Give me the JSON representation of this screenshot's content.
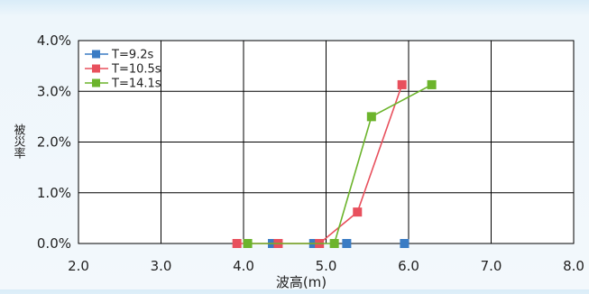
{
  "chart_data": {
    "type": "line",
    "xlabel": "波高(m)",
    "ylabel": "被災率",
    "xlim": [
      2.0,
      8.0
    ],
    "ylim": [
      0.0,
      0.04
    ],
    "x_ticks": [
      "2.0",
      "3.0",
      "4.0",
      "5.0",
      "6.0",
      "7.0",
      "8.0"
    ],
    "y_ticks": [
      "0.0%",
      "1.0%",
      "2.0%",
      "3.0%",
      "4.0%"
    ],
    "grid": true,
    "legend_position": "top-left",
    "series": [
      {
        "name": "T=9.2s",
        "color": "#3a7cc4",
        "connected": false,
        "points": [
          [
            4.35,
            0.0
          ],
          [
            4.85,
            0.0
          ],
          [
            5.25,
            0.0
          ],
          [
            5.95,
            0.0
          ]
        ]
      },
      {
        "name": "T=10.5s",
        "color": "#e8505d",
        "connected": true,
        "points": [
          [
            3.92,
            0.0
          ],
          [
            4.42,
            0.0
          ],
          [
            4.92,
            0.0
          ],
          [
            5.38,
            0.0062
          ],
          [
            5.92,
            0.0313
          ]
        ]
      },
      {
        "name": "T=14.1s",
        "color": "#6cb42c",
        "connected": true,
        "points": [
          [
            4.05,
            0.0
          ],
          [
            5.1,
            0.0
          ],
          [
            5.55,
            0.025
          ],
          [
            6.28,
            0.0313
          ]
        ]
      }
    ]
  }
}
